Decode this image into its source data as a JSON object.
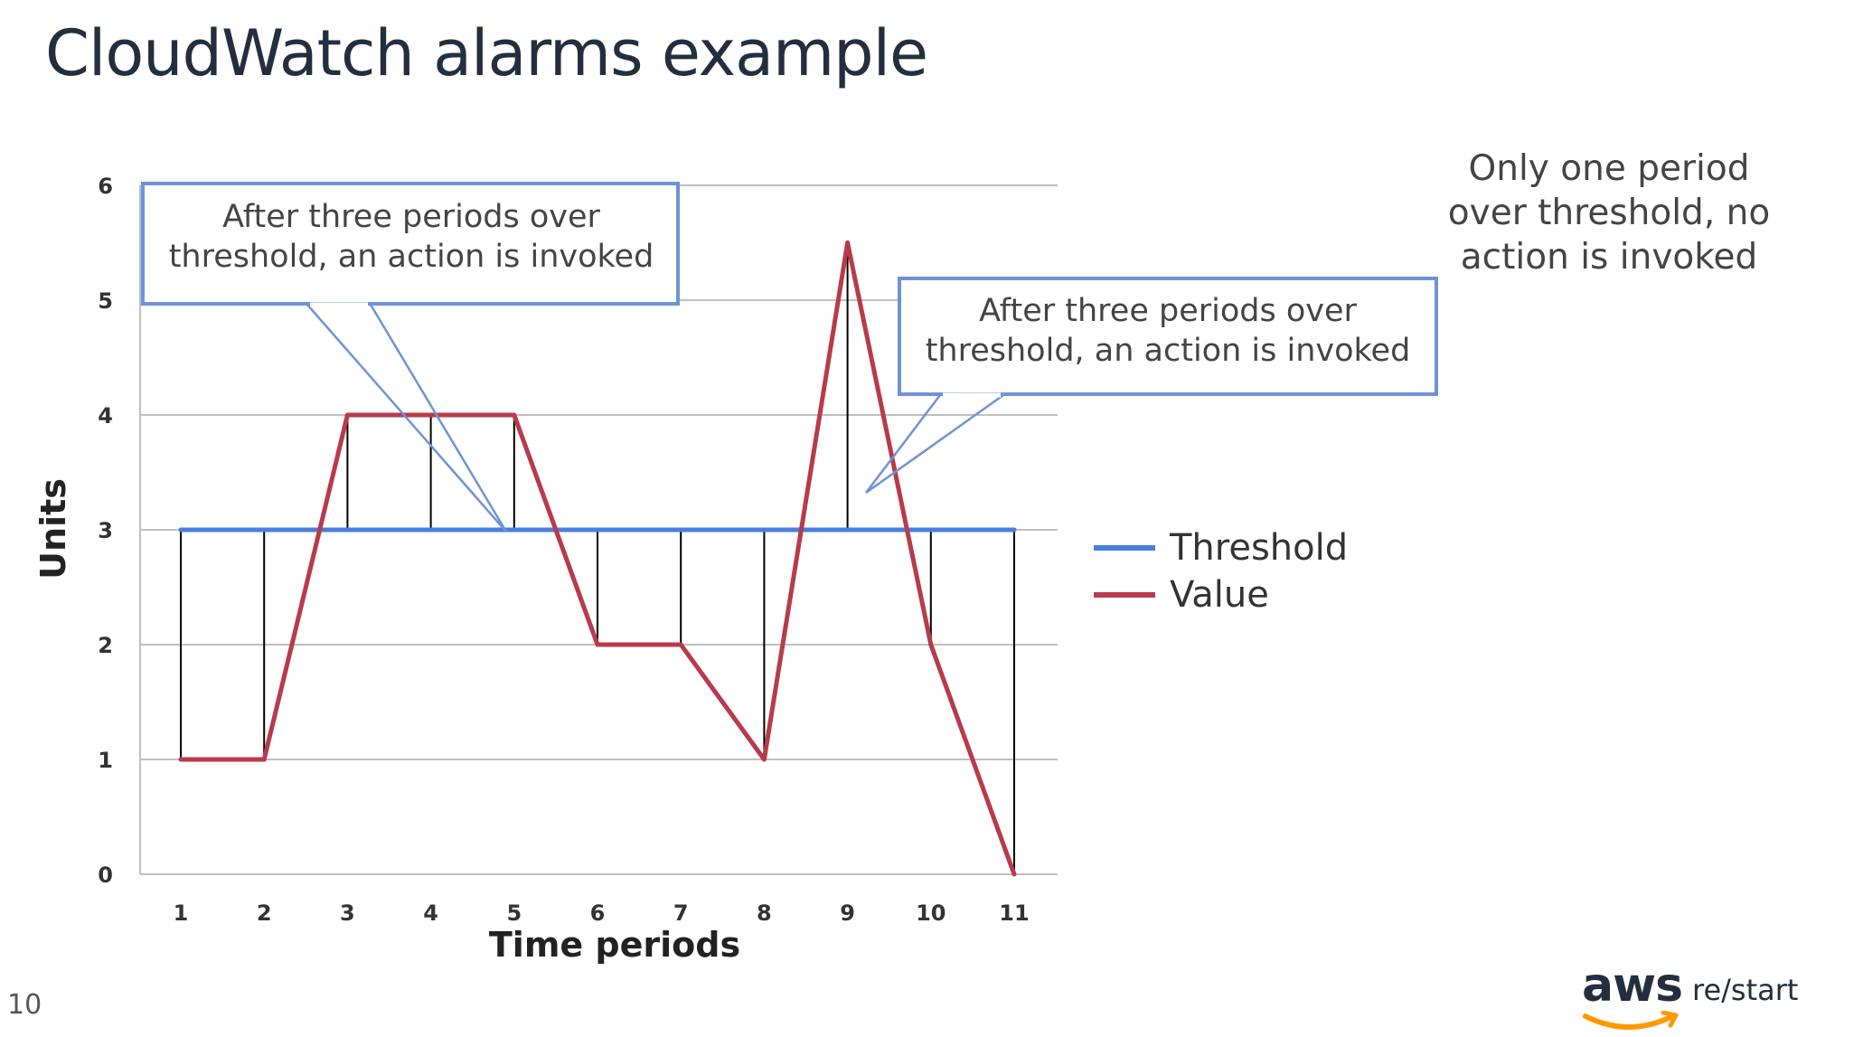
{
  "slide": {
    "title": "CloudWatch alarms example",
    "page_number": "10",
    "brand": {
      "logo_text": "aws",
      "product": "re/start"
    }
  },
  "callouts": [
    {
      "text_line1": "After three periods over",
      "text_line2": "threshold, an action is invoked"
    },
    {
      "text_line1": "After three periods over",
      "text_line2": "threshold, an action is invoked"
    }
  ],
  "note": {
    "line1": "Only one period",
    "line2": "over threshold, no",
    "line3": "action is invoked"
  },
  "colors": {
    "threshold": "#4a7fe0",
    "value": "#b83a4b",
    "callout_border": "#6f93d6",
    "grid": "#bfbfbf",
    "drop_line": "#000000"
  },
  "chart_data": {
    "type": "line",
    "xlabel": "Time periods",
    "ylabel": "Units",
    "x": [
      1,
      2,
      3,
      4,
      5,
      6,
      7,
      8,
      9,
      10,
      11
    ],
    "xticks": [
      "1",
      "2",
      "3",
      "4",
      "5",
      "6",
      "7",
      "8",
      "9",
      "10",
      "11"
    ],
    "yticks": [
      "0",
      "1",
      "2",
      "3",
      "4",
      "5",
      "6"
    ],
    "ylim": [
      0,
      6
    ],
    "grid": true,
    "legend_position": "right",
    "series": [
      {
        "name": "Threshold",
        "values": [
          3,
          3,
          3,
          3,
          3,
          3,
          3,
          3,
          3,
          3,
          3
        ]
      },
      {
        "name": "Value",
        "values": [
          1,
          1,
          4,
          4,
          4,
          2,
          2,
          1,
          5.5,
          2,
          0
        ]
      }
    ]
  }
}
